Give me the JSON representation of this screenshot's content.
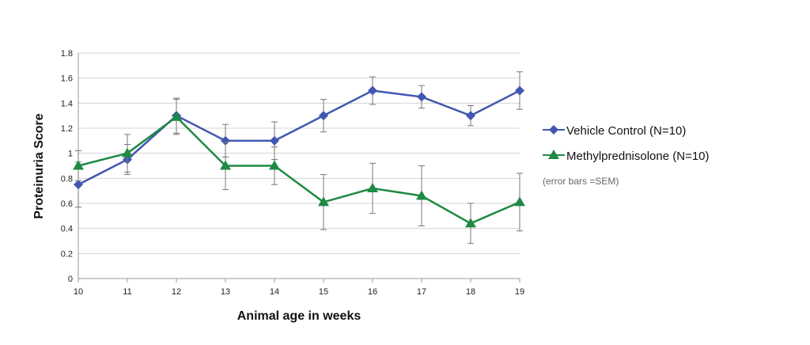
{
  "chart_data": {
    "type": "line",
    "xlabel": "Animal age in weeks",
    "ylabel": "Proteinuria Score",
    "x": [
      10,
      11,
      12,
      13,
      14,
      15,
      16,
      17,
      18,
      19
    ],
    "xlim": [
      10,
      19
    ],
    "ylim": [
      0,
      1.8
    ],
    "yticks": [
      0,
      0.2,
      0.4,
      0.6,
      0.8,
      1,
      1.2,
      1.4,
      1.6,
      1.8
    ],
    "ytick_labels": [
      "0",
      "0.2",
      "0.4",
      "0.6",
      "0.8",
      "1",
      "1.2",
      "1.4",
      "1.6",
      "1.8"
    ],
    "grid": "horizontal",
    "legend_position": "right",
    "annotation": "(error bars =SEM)",
    "series": [
      {
        "name": "Vehicle Control (N=10)",
        "color": "#4157b1",
        "marker": "diamond",
        "values": [
          0.75,
          0.95,
          1.3,
          1.1,
          1.1,
          1.3,
          1.5,
          1.45,
          1.3,
          1.5
        ],
        "error": [
          0.18,
          0.12,
          0.14,
          0.13,
          0.15,
          0.13,
          0.11,
          0.09,
          0.08,
          0.15
        ]
      },
      {
        "name": "Methylprednisolone (N=10)",
        "color": "#1f8a44",
        "marker": "triangle",
        "values": [
          0.9,
          1.0,
          1.29,
          0.9,
          0.9,
          0.61,
          0.72,
          0.66,
          0.44,
          0.61
        ],
        "error": [
          0.12,
          0.15,
          0.14,
          0.19,
          0.15,
          0.22,
          0.2,
          0.24,
          0.16,
          0.23
        ]
      }
    ]
  }
}
